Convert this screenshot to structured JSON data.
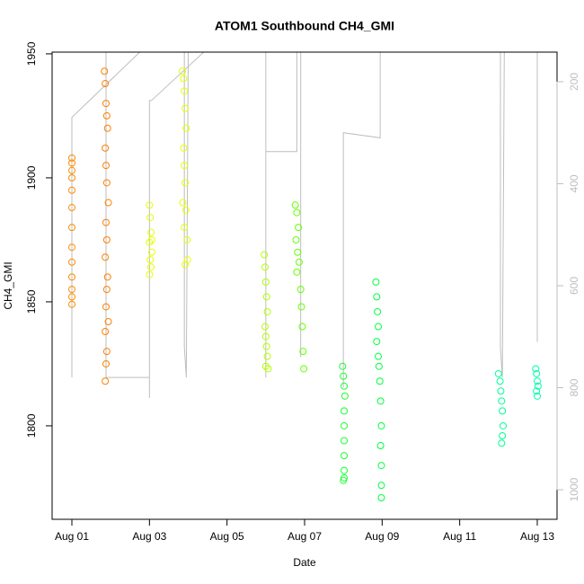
{
  "chart_data": {
    "type": "scatter",
    "title": "ATOM1 Southbound CH4_GMI",
    "x_label": "Date",
    "y_label": "CH4_GMI",
    "xlim": [
      0.49,
      13.51
    ],
    "xticks": [
      {
        "value": 1,
        "label": "Aug 01"
      },
      {
        "value": 3,
        "label": "Aug 03"
      },
      {
        "value": 5,
        "label": "Aug 05"
      },
      {
        "value": 7,
        "label": "Aug 07"
      },
      {
        "value": 9,
        "label": "Aug 09"
      },
      {
        "value": 11,
        "label": "Aug 11"
      },
      {
        "value": 13,
        "label": "Aug 13"
      }
    ],
    "ylim": [
      1762.3,
      1950.7
    ],
    "yticks": [
      1800,
      1850,
      1900,
      1950
    ],
    "y2lim": [
      1058,
      142
    ],
    "y2ticks": [
      200,
      400,
      600,
      800,
      1000
    ],
    "series": [
      {
        "color": "#ff8c00",
        "x": [
          1.0,
          1.0,
          1.0,
          1.0,
          1.0,
          1.0,
          1.0,
          1.0,
          1.0,
          1.0,
          1.0,
          1.0,
          1.0
        ],
        "values": [
          1908,
          1906,
          1903,
          1900,
          1895,
          1888,
          1880,
          1872,
          1866,
          1860,
          1855,
          1852,
          1849
        ]
      },
      {
        "color": "#ff8000",
        "x": [
          1.84,
          1.86,
          1.88,
          1.9,
          1.92,
          1.86,
          1.88,
          1.9,
          1.94,
          1.88,
          1.9,
          1.86,
          1.92,
          1.9,
          1.88,
          1.94,
          1.86,
          1.9,
          1.88,
          1.86
        ],
        "values": [
          1943,
          1938,
          1930,
          1925,
          1920,
          1912,
          1905,
          1898,
          1890,
          1882,
          1875,
          1868,
          1860,
          1855,
          1848,
          1842,
          1838,
          1830,
          1825,
          1818
        ]
      },
      {
        "color": "#e6ff00",
        "x": [
          3.0,
          3.02,
          3.04,
          3.0,
          3.06,
          3.02,
          3.04,
          3.0,
          3.06
        ],
        "values": [
          1889,
          1884,
          1878,
          1874,
          1870,
          1867,
          1864,
          1861,
          1875
        ]
      },
      {
        "color": "#e6ff00",
        "x": [
          3.85,
          3.88,
          3.9,
          3.92,
          3.95,
          3.88,
          3.9,
          3.92,
          3.86,
          3.94,
          3.9,
          3.97,
          3.98,
          3.92
        ],
        "values": [
          1943,
          1940,
          1935,
          1928,
          1920,
          1912,
          1905,
          1898,
          1890,
          1887,
          1880,
          1875,
          1867,
          1865
        ]
      },
      {
        "color": "#b3ff00",
        "x": [
          5.96,
          5.98,
          6.0,
          6.02,
          6.04,
          5.98,
          6.0,
          6.02,
          6.04,
          6.0,
          6.06
        ],
        "values": [
          1869,
          1864,
          1858,
          1852,
          1846,
          1840,
          1836,
          1832,
          1828,
          1824,
          1823
        ]
      },
      {
        "color": "#66ff00",
        "x": [
          6.76,
          6.8,
          6.84,
          6.78,
          6.82,
          6.86,
          6.8,
          6.9,
          6.92,
          6.94,
          6.96,
          6.98
        ],
        "values": [
          1889,
          1886,
          1880,
          1875,
          1870,
          1866,
          1862,
          1855,
          1848,
          1840,
          1830,
          1823
        ]
      },
      {
        "color": "#1aff33",
        "x": [
          7.98,
          8.0,
          8.02,
          8.04,
          8.02,
          8.02,
          8.02,
          8.02,
          8.02,
          8.02,
          8.0
        ],
        "values": [
          1824,
          1820,
          1816,
          1812,
          1806,
          1800,
          1794,
          1788,
          1782,
          1779,
          1778
        ]
      },
      {
        "color": "#00ff40",
        "x": [
          8.84,
          8.86,
          8.88,
          8.9,
          8.86,
          8.9,
          8.92,
          8.94,
          8.96,
          8.98,
          8.96,
          8.98,
          8.98,
          8.98
        ],
        "values": [
          1858,
          1852,
          1846,
          1840,
          1834,
          1828,
          1824,
          1818,
          1810,
          1800,
          1792,
          1784,
          1776,
          1771
        ]
      },
      {
        "color": "#00ff99",
        "x": [
          12.0,
          12.04,
          12.06,
          12.08,
          12.1,
          12.12,
          12.1,
          12.08
        ],
        "values": [
          1821,
          1818,
          1814,
          1810,
          1806,
          1800,
          1796,
          1793
        ]
      },
      {
        "color": "#00ffa6",
        "x": [
          12.96,
          12.98,
          13.0,
          13.02,
          12.98,
          13.0
        ],
        "values": [
          1823,
          1821,
          1818,
          1816,
          1814,
          1812
        ]
      },
      {
        "type": "line",
        "axis": "y2",
        "color": "#bebebe",
        "x": [
          1.0,
          1.0,
          2.75,
          1.88,
          1.88,
          1.88,
          3.0,
          3.0,
          3.0,
          3.05,
          4.4,
          3.9,
          3.9,
          3.9,
          3.95,
          4.0,
          4.0,
          6.0,
          6.0,
          6.0,
          6.0,
          6.8,
          6.8,
          6.9,
          6.9,
          6.9,
          8.0,
          8.0,
          8.0,
          8.0,
          8.95,
          8.95,
          8.95,
          12.05,
          12.05,
          12.1,
          12.15,
          12.15,
          13.0,
          13.0
        ],
        "values": [
          780,
          270,
          142,
          null,
          142,
          780,
          780,
          820,
          237,
          237,
          142,
          null,
          142,
          720,
          780,
          142,
          null,
          142,
          780,
          337,
          337,
          337,
          142,
          null,
          142,
          740,
          null,
          300,
          800,
          300,
          310,
          142,
          null,
          142,
          720,
          780,
          142,
          null,
          142,
          710
        ]
      }
    ]
  }
}
